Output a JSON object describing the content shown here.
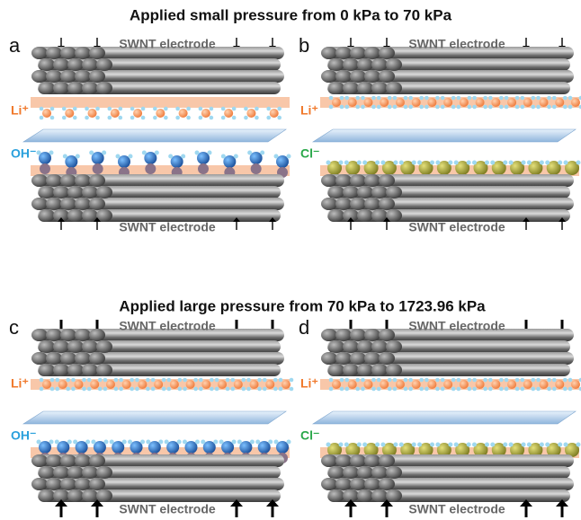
{
  "sections": [
    {
      "title": "Applied small pressure from 0 kPa to 70 kPa",
      "panels": [
        {
          "label": "a",
          "top_electrode": "SWNT electrode",
          "cation": "Li⁺",
          "anion": "OH⁻",
          "bottom_electrode": "SWNT electrode"
        },
        {
          "label": "b",
          "top_electrode": "SWNT electrode",
          "cation": "Li⁺",
          "anion": "Cl⁻",
          "bottom_electrode": "SWNT electrode"
        }
      ]
    },
    {
      "title": "Applied large pressure from 70 kPa to 1723.96 kPa",
      "panels": [
        {
          "label": "c",
          "top_electrode": "SWNT electrode",
          "cation": "Li⁺",
          "anion": "OH⁻",
          "bottom_electrode": "SWNT electrode"
        },
        {
          "label": "d",
          "top_electrode": "SWNT electrode",
          "cation": "Li⁺",
          "anion": "Cl⁻",
          "bottom_electrode": "SWNT electrode"
        }
      ]
    }
  ]
}
